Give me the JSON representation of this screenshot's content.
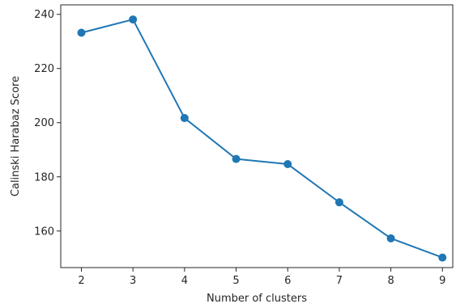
{
  "chart_data": {
    "type": "line",
    "title": "",
    "xlabel": "Number of clusters",
    "ylabel": "Calinski Harabaz Score",
    "x": [
      2,
      3,
      4,
      5,
      6,
      7,
      8,
      9
    ],
    "series": [
      {
        "values": [
          233.2,
          238.1,
          201.7,
          186.6,
          184.7,
          170.6,
          157.3,
          150.2
        ],
        "color": "#1f77b4",
        "marker": "circle"
      }
    ],
    "xticks": [
      2,
      3,
      4,
      5,
      6,
      7,
      8,
      9
    ],
    "yticks": [
      160,
      180,
      200,
      220,
      240
    ],
    "xlim": [
      1.6,
      9.2
    ],
    "ylim": [
      146.5,
      243.5
    ],
    "grid": false,
    "legend": "none"
  }
}
